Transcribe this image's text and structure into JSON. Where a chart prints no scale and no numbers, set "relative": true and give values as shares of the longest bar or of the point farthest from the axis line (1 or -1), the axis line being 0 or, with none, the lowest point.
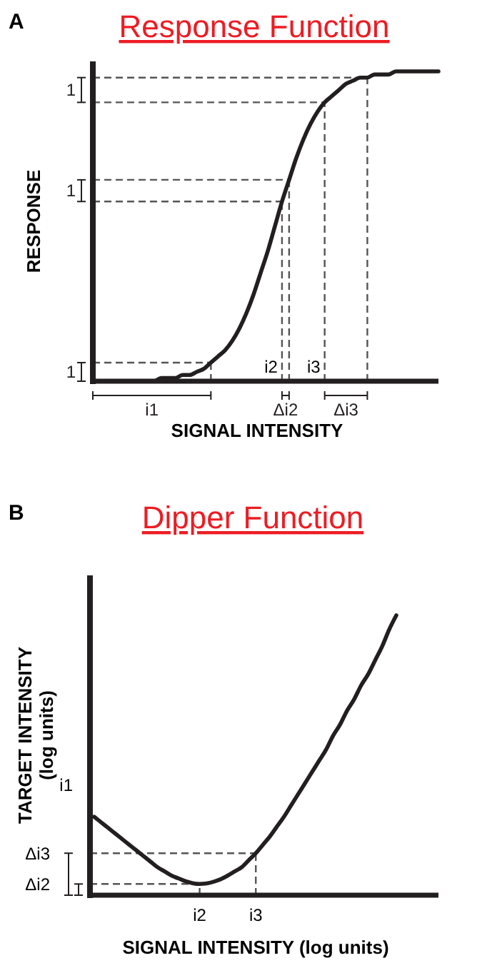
{
  "chart_data": [
    {
      "type": "line",
      "title": "Response Function",
      "xlabel": "SIGNAL INTENSITY",
      "ylabel": "RESPONSE",
      "relative": true,
      "categories": [
        null,
        null,
        null,
        null,
        null,
        null,
        null,
        null,
        null,
        null,
        null,
        null,
        null,
        null,
        null,
        null,
        null,
        null,
        null,
        null,
        null,
        null,
        null,
        null,
        null,
        null,
        null,
        null,
        null,
        null,
        null,
        null,
        null,
        null,
        null,
        null,
        null,
        null,
        null,
        null,
        null,
        null,
        null,
        null,
        null,
        null,
        null,
        null,
        null
      ],
      "series": [
        {
          "color": "#231f20",
          "values": [
            0,
            0,
            0,
            0,
            0,
            0,
            0,
            0,
            0,
            0.01,
            0.01,
            0.01,
            0.02,
            0.02,
            0.03,
            0.04,
            0.06,
            0.08,
            0.1,
            0.13,
            0.17,
            0.22,
            0.28,
            0.35,
            0.42,
            0.5,
            0.58,
            0.65,
            0.72,
            0.78,
            0.83,
            0.87,
            0.9,
            0.92,
            0.94,
            0.96,
            0.97,
            0.98,
            0.98,
            0.99,
            0.99,
            0.99,
            1,
            1,
            1,
            1,
            1,
            1,
            1
          ]
        }
      ],
      "ref_lines": [
        {
          "axis": "y",
          "value": 0.06
        },
        {
          "axis": "y",
          "value": 0.58
        },
        {
          "axis": "y",
          "value": 0.65
        },
        {
          "axis": "y",
          "value": 0.9
        },
        {
          "axis": "y",
          "value": 0.98
        }
      ],
      "annotations": [
        "A",
        "1",
        "1",
        "1",
        "i1",
        "i2",
        "Δi2",
        "i3",
        "Δi3"
      ]
    },
    {
      "type": "line",
      "title": "Dipper Function",
      "xlabel": "SIGNAL INTENSITY (log units)",
      "ylabel": "TARGET INTENSITY (log units)",
      "relative": true,
      "categories": [
        null,
        null,
        null,
        null,
        null,
        null,
        null,
        null,
        null,
        null,
        null,
        null,
        null,
        null,
        null,
        null,
        null,
        null,
        null,
        null,
        null,
        null,
        null,
        null,
        null,
        null,
        null,
        null,
        null,
        null,
        null,
        null,
        null,
        null,
        null,
        null,
        null,
        null,
        null,
        null,
        null,
        null,
        null,
        null,
        null,
        null,
        null,
        null,
        null,
        null
      ],
      "series": [
        {
          "color": "#231f20",
          "values": [
            0.28,
            0.26,
            0.24,
            0.22,
            0.2,
            0.18,
            0.16,
            0.14,
            0.12,
            0.1,
            0.085,
            0.07,
            0.06,
            0.05,
            0.043,
            0.04,
            0.042,
            0.048,
            0.057,
            0.07,
            0.085,
            0.1,
            0.125,
            0.15,
            0.18,
            0.21,
            0.245,
            0.28,
            0.32,
            0.36,
            0.4,
            0.44,
            0.48,
            0.52,
            0.57,
            0.61,
            0.66,
            0.7,
            0.75,
            0.79,
            0.84,
            0.89,
            0.95,
            1,
            null,
            null,
            null,
            null,
            null,
            null
          ]
        }
      ],
      "ref_lines": [
        {
          "axis": "y",
          "value": 0.04
        },
        {
          "axis": "y",
          "value": 0.15
        }
      ],
      "annotations": [
        "B",
        "i1",
        "Δi3",
        "Δi2",
        "i2",
        "i3"
      ]
    }
  ]
}
